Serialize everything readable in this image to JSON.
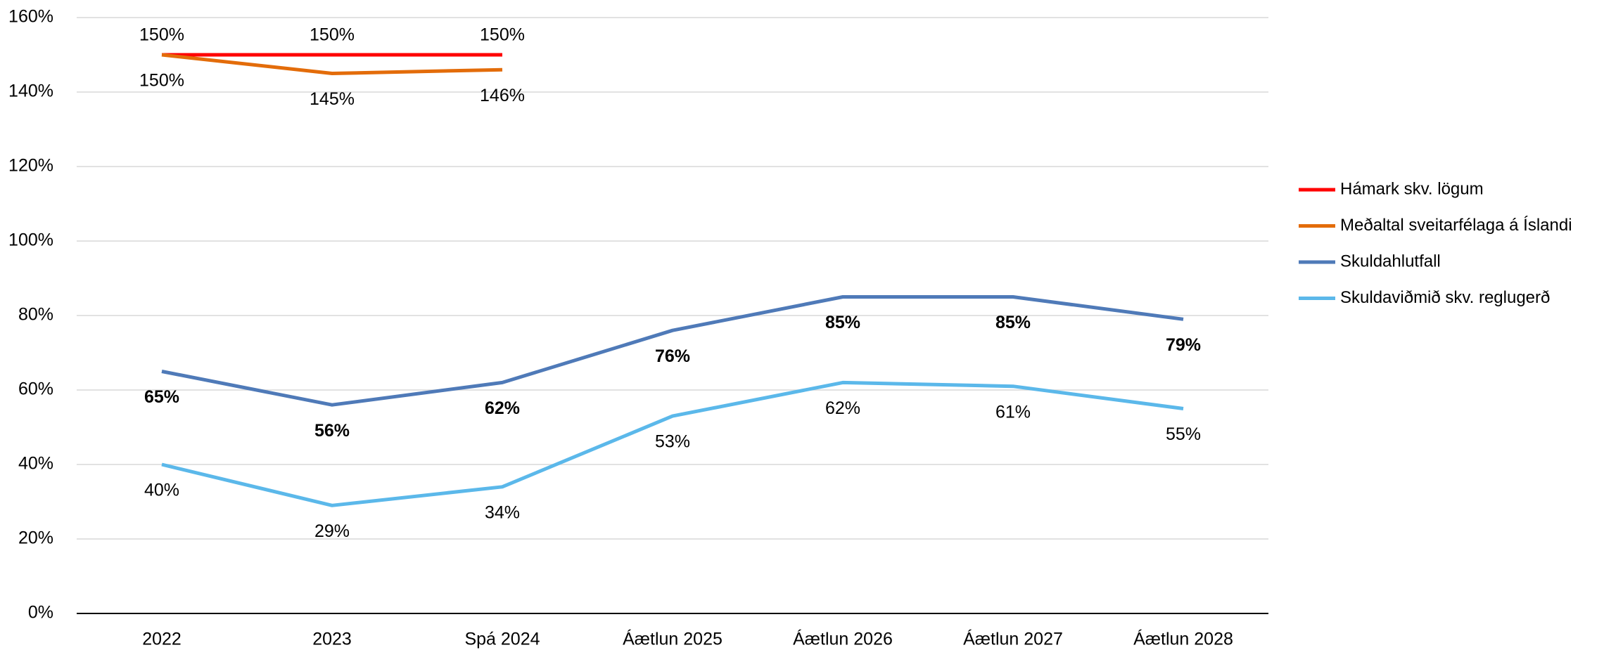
{
  "chart_data": {
    "type": "line",
    "categories": [
      "2022",
      "2023",
      "Spá 2024",
      "Áætlun 2025",
      "Áætlun 2026",
      "Áætlun 2027",
      "Áætlun 2028"
    ],
    "series": [
      {
        "name": "Hámark skv. lögum",
        "color": "#ff0000",
        "values": [
          150,
          150,
          150,
          null,
          null,
          null,
          null
        ],
        "value_labels": [
          "150%",
          "150%",
          "150%",
          null,
          null,
          null,
          null
        ]
      },
      {
        "name": "Meðaltal sveitarfélaga á Íslandi",
        "color": "#e36c0a",
        "values": [
          150,
          145,
          146,
          null,
          null,
          null,
          null
        ],
        "value_labels": [
          "150%",
          "145%",
          "146%",
          null,
          null,
          null,
          null
        ]
      },
      {
        "name": "Skuldahlutfall",
        "color": "#4f7ab8",
        "values": [
          65,
          56,
          62,
          76,
          85,
          85,
          79
        ],
        "value_labels": [
          "65%",
          "56%",
          "62%",
          "76%",
          "85%",
          "85%",
          "79%"
        ]
      },
      {
        "name": "Skuldaviðmið skv. reglugerð",
        "color": "#5bb8ea",
        "values": [
          40,
          29,
          34,
          53,
          62,
          61,
          55
        ],
        "value_labels": [
          "40%",
          "29%",
          "34%",
          "53%",
          "62%",
          "61%",
          "55%"
        ]
      }
    ],
    "ylim": [
      0,
      160
    ],
    "yticks": [
      {
        "value": 0,
        "label": "0%"
      },
      {
        "value": 20,
        "label": "20%"
      },
      {
        "value": 40,
        "label": "40%"
      },
      {
        "value": 60,
        "label": "60%"
      },
      {
        "value": 80,
        "label": "80%"
      },
      {
        "value": 100,
        "label": "100%"
      },
      {
        "value": 120,
        "label": "120%"
      },
      {
        "value": 140,
        "label": "140%"
      },
      {
        "value": 160,
        "label": "160%"
      }
    ],
    "grid": true,
    "legend": "right"
  }
}
